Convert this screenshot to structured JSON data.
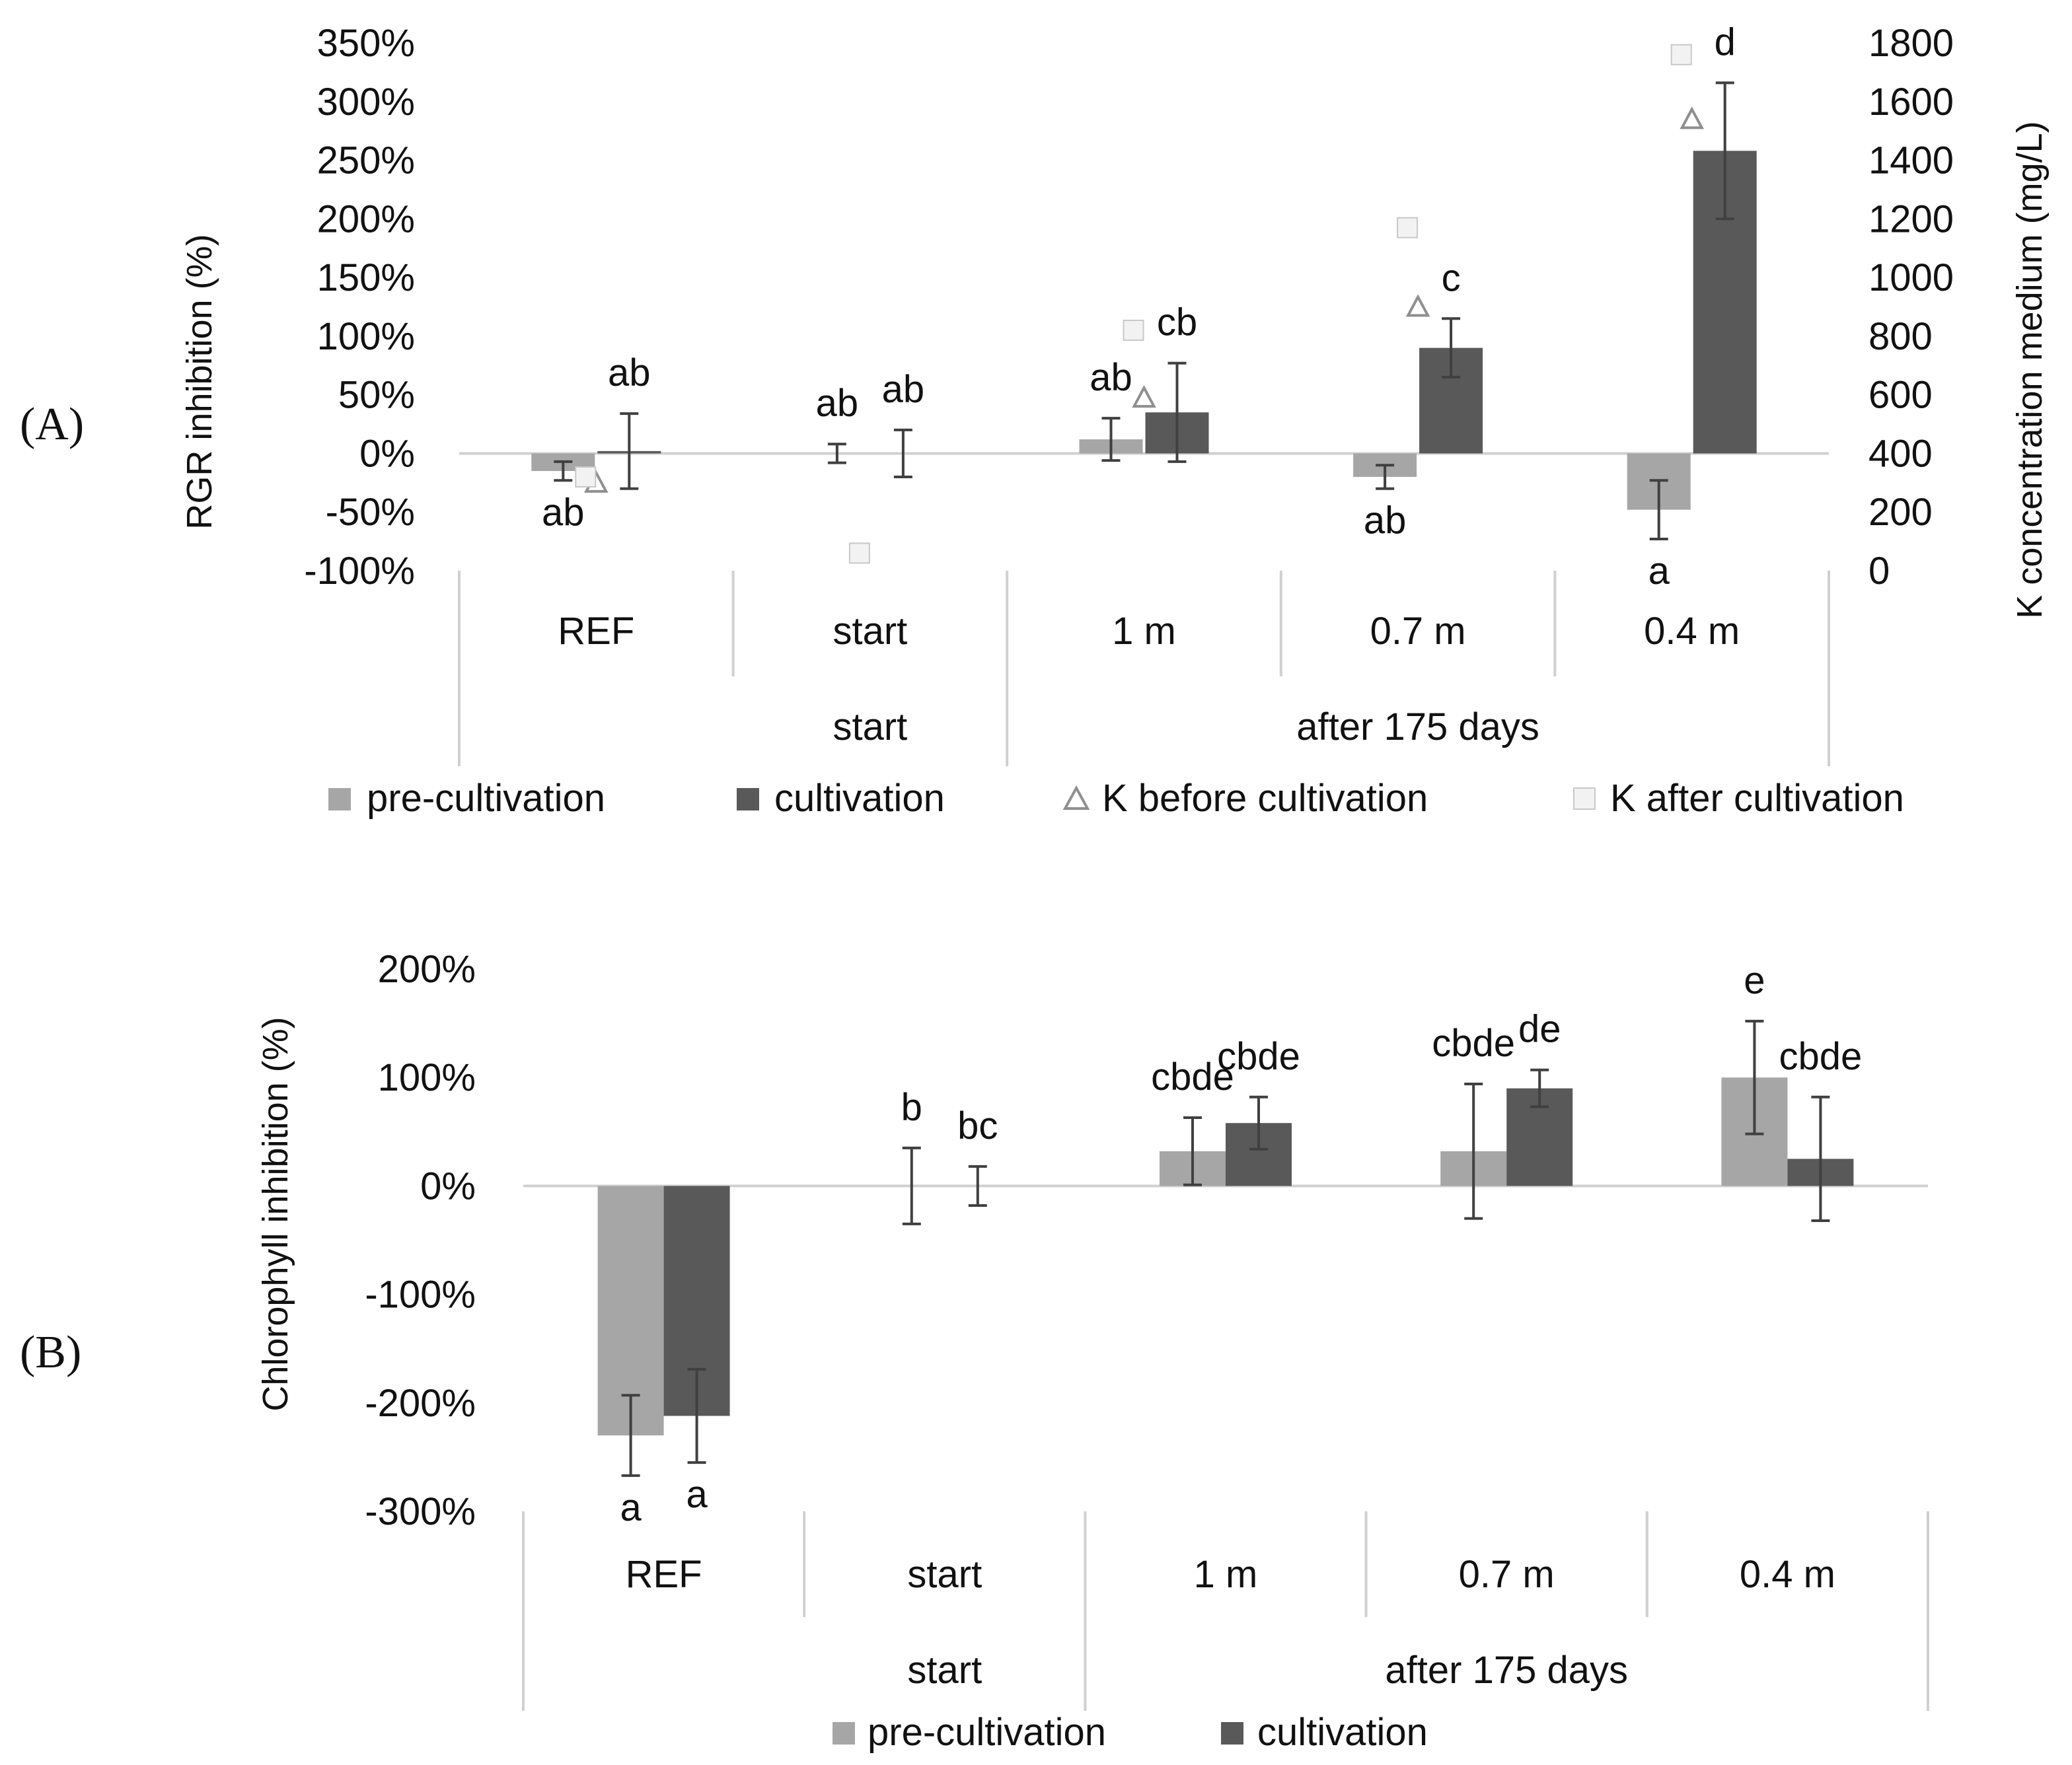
{
  "colors": {
    "pre": "#a6a6a6",
    "cult": "#595959",
    "k_before": "#8f8f8f",
    "k_after_fill": "#f2f2f2",
    "k_after_stroke": "#c8c8c8",
    "axis": "#d0d0d0",
    "error": "#404040"
  },
  "chart_data": [
    {
      "panel": "(A)",
      "type": "bar",
      "ylabel": "RGR inhibition (%)",
      "y2label": "K concentration medium (mg/L)",
      "ylim": [
        -100,
        350
      ],
      "yticks": [
        "350%",
        "300%",
        "250%",
        "200%",
        "150%",
        "100%",
        "50%",
        "0%",
        "-50%",
        "-100%"
      ],
      "y2lim": [
        0,
        1800
      ],
      "y2ticks": [
        "1800",
        "1600",
        "1400",
        "1200",
        "1000",
        "800",
        "600",
        "400",
        "200",
        "0"
      ],
      "categories": [
        "REF",
        "start",
        "1 m",
        "0.7 m",
        "0.4 m"
      ],
      "groups": [
        {
          "label": "start",
          "from": 0,
          "to": 1
        },
        {
          "label": "after 175 days",
          "from": 2,
          "to": 4
        }
      ],
      "series": [
        {
          "name": "pre-cultivation",
          "values": [
            -15,
            0,
            12,
            -20,
            -48
          ],
          "errors": [
            8,
            8,
            18,
            10,
            25
          ],
          "labels": [
            "ab",
            "ab",
            "ab",
            "ab",
            "a"
          ],
          "label_pos": [
            "below",
            "above",
            "above",
            "below",
            "below"
          ]
        },
        {
          "name": "cultivation",
          "values": [
            2,
            0,
            35,
            90,
            258
          ],
          "errors": [
            32,
            20,
            42,
            25,
            58
          ],
          "labels": [
            "ab",
            "ab",
            "cb",
            "c",
            "d"
          ],
          "label_pos": [
            "above",
            "above",
            "above",
            "above",
            "above"
          ]
        }
      ],
      "markers": [
        {
          "name": "K before cultivation",
          "values": [
            300,
            null,
            590,
            900,
            1540
          ]
        },
        {
          "name": "K after cultivation",
          "values": [
            320,
            60,
            820,
            1170,
            1760
          ]
        }
      ],
      "legend": [
        "pre-cultivation",
        "cultivation",
        "K before cultivation",
        "K after cultivation"
      ]
    },
    {
      "panel": "(B)",
      "type": "bar",
      "ylabel": "Chlorophyll inhibition (%)",
      "ylim": [
        -300,
        200
      ],
      "yticks": [
        "200%",
        "100%",
        "0%",
        "-100%",
        "-200%",
        "-300%"
      ],
      "categories": [
        "REF",
        "start",
        "1 m",
        "0.7 m",
        "0.4 m"
      ],
      "groups": [
        {
          "label": "start",
          "from": 0,
          "to": 1
        },
        {
          "label": "after 175 days",
          "from": 2,
          "to": 4
        }
      ],
      "series": [
        {
          "name": "pre-cultivation",
          "values": [
            -230,
            0,
            32,
            32,
            100
          ],
          "errors": [
            37,
            35,
            31,
            62,
            52
          ],
          "labels": [
            "a",
            "b",
            "cbde",
            "cbde",
            "e"
          ],
          "label_pos": [
            "below",
            "above",
            "above",
            "above",
            "above"
          ]
        },
        {
          "name": "cultivation",
          "values": [
            -212,
            0,
            58,
            90,
            25
          ],
          "errors": [
            43,
            18,
            24,
            17,
            57
          ],
          "labels": [
            "a",
            "bc",
            "cbde",
            "de",
            "cbde"
          ],
          "label_pos": [
            "below",
            "above",
            "above",
            "above",
            "above"
          ]
        }
      ],
      "legend": [
        "pre-cultivation",
        "cultivation"
      ]
    }
  ]
}
